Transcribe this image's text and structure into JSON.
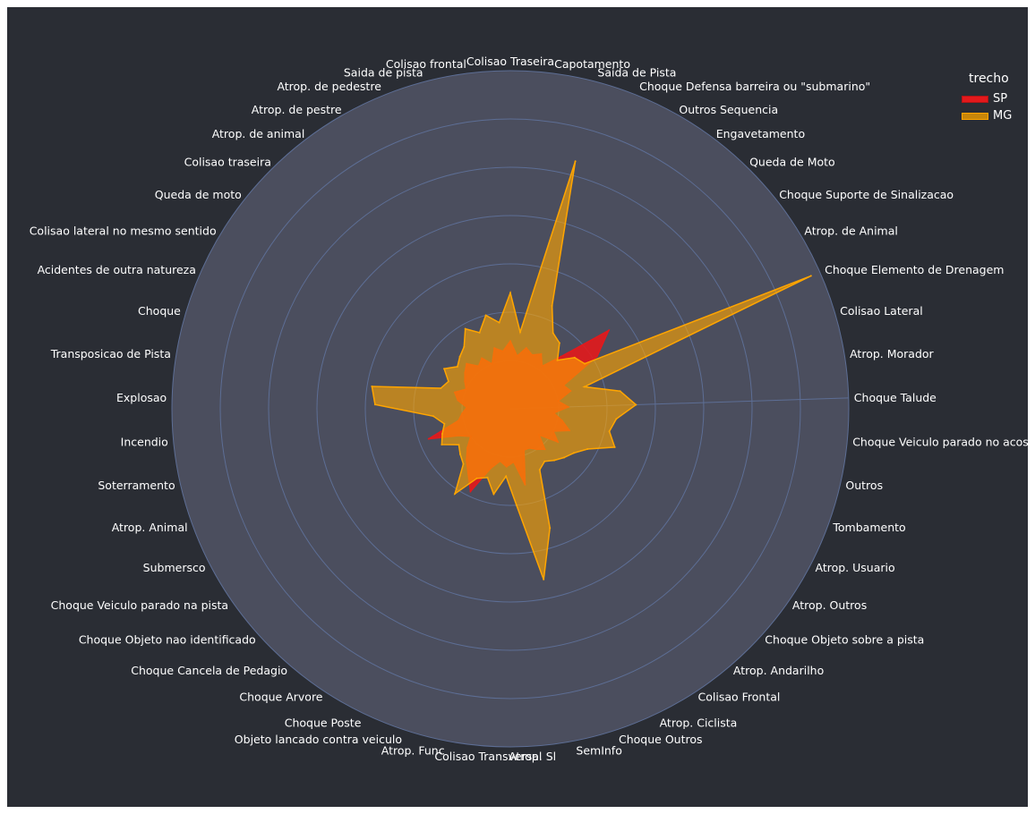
{
  "chart_data": {
    "type": "radar",
    "theta_categories": [
      "Colisao Traseira",
      "Capotamento",
      "Saida de Pista",
      "Choque Defensa barreira ou \"submarino\"",
      "Outros Sequencia",
      "Engavetamento",
      "Queda de Moto",
      "Choque Suporte de Sinalizacao",
      "Atrop. de Animal",
      "Choque Elemento de Drenagem",
      "Colisao Lateral",
      "Atrop. Morador",
      "Choque Talude",
      "Choque Veiculo parado no acostamento",
      "Outros",
      "Tombamento",
      "Atrop. Usuario",
      "Atrop. Outros",
      "Choque Objeto sobre a pista",
      "Atrop. Andarilho",
      "Colisao Frontal",
      "Atrop. Ciclista",
      "Choque Outros",
      "SemInfo",
      "Atrop. Sl",
      "Colisao Transversal",
      "Atrop. Func",
      "Objeto lancado contra veiculo",
      "Choque Poste",
      "Choque Arvore",
      "Choque Cancela de Pedagio",
      "Choque Objeto nao identificado",
      "Choque Veiculo parado na pista",
      "Submersco",
      "Atrop. Animal",
      "Soterramento",
      "Incendio",
      "Explosao",
      "Transposicao de Pista",
      "Choque",
      "Acidentes de outra natureza",
      "Colisao lateral no mesmo sentido",
      "Queda de moto",
      "Colisao traseira",
      "Atrop. de animal",
      "Atrop. de pestre",
      "Atrop. de pedestre",
      "Saida de pista",
      "Colisao frontal"
    ],
    "label_texts": [
      "Colisao Traseira",
      "Capotamento",
      "Saida de Pista",
      "Choque Defensa barreira ou \"submarino\"",
      "Outros Sequencia",
      "Engavetamento",
      "Queda de Moto",
      "Choque Suporte de Sinalizacao",
      "Atrop. de Animal",
      "Choque Elemento de Drenagem",
      "Colisao Lateral",
      "Atrop. Morador",
      "Choque Talude",
      "Choque Veiculo parado no acostam",
      "Outros",
      "Tombamento",
      "Atrop. Usuario",
      "Atrop. Outros",
      "Choque Objeto sobre a pista",
      "Atrop. Andarilho",
      "Colisao Frontal",
      "Atrop. Ciclista",
      "Choque Outros",
      "SemInfo",
      "Atrop. Sl",
      "Colisao Transversal",
      "Atrop. Func",
      "Objeto lancado contra veiculo",
      "Choque Poste",
      "Choque Arvore",
      "Choque Cancela de Pedagio",
      "Choque Objeto nao identificado",
      "Choque Veiculo parado na pista",
      "Submersco",
      "Atrop. Animal",
      "Soterramento",
      "Incendio",
      "Explosao",
      "Transposicao de Pista",
      "Choque",
      "Acidentes de outra natureza",
      "Colisao lateral no mesmo sentido",
      "Queda de moto",
      "Colisao traseira",
      "Atrop. de animal",
      "Atrop. de pestre",
      "Atrop. de pedestre",
      "Saida de pista",
      "Colisao frontal"
    ],
    "radial_range": [
      0,
      7
    ],
    "grid": true,
    "legend_title": "trecho",
    "legend_position": "top-right",
    "series": [
      {
        "name": "SP",
        "color": "#e3191c",
        "values": [
          1.4,
          1.1,
          1.3,
          1.2,
          1.3,
          1.1,
          1.5,
          2.6,
          2.1,
          1.2,
          1.3,
          1.0,
          1.2,
          0.9,
          1.1,
          1.3,
          1.0,
          1.2,
          0.8,
          1.1,
          1.0,
          0.9,
          0.9,
          1.6,
          1.1,
          1.2,
          1.1,
          1.3,
          1.9,
          1.6,
          1.4,
          1.2,
          1.0,
          1.2,
          1.8,
          1.1,
          1.0,
          0.9,
          1.1,
          1.2,
          1.0,
          1.1,
          1.2,
          1.3,
          1.1,
          1.2,
          1.0,
          1.3,
          1.2
        ]
      },
      {
        "name": "MG",
        "color": "#ffa500",
        "values": [
          2.4,
          1.6,
          5.3,
          2.3,
          1.8,
          1.7,
          1.4,
          1.7,
          1.8,
          6.8,
          1.6,
          2.3,
          2.6,
          2.2,
          2.1,
          2.3,
          1.8,
          1.6,
          1.5,
          1.4,
          1.3,
          1.4,
          2.6,
          3.6,
          2.0,
          1.4,
          1.8,
          1.5,
          1.6,
          2.1,
          1.5,
          1.4,
          1.3,
          1.6,
          1.5,
          1.4,
          1.6,
          2.8,
          2.9,
          1.5,
          1.4,
          1.6,
          1.4,
          1.5,
          1.6,
          1.9,
          1.7,
          2.0,
          1.8
        ]
      }
    ]
  }
}
